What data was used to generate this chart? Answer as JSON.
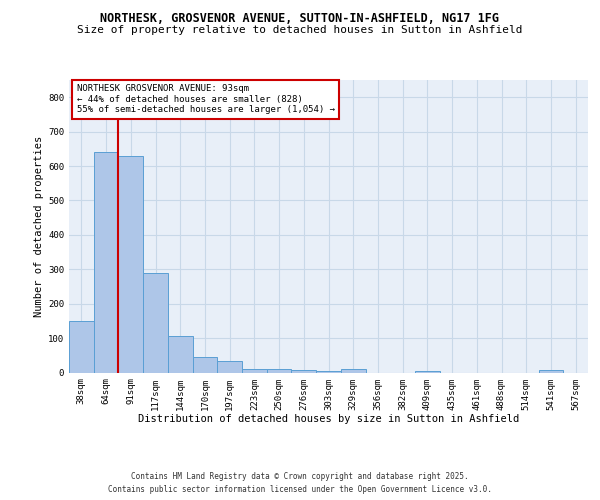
{
  "title1": "NORTHESK, GROSVENOR AVENUE, SUTTON-IN-ASHFIELD, NG17 1FG",
  "title2": "Size of property relative to detached houses in Sutton in Ashfield",
  "xlabel": "Distribution of detached houses by size in Sutton in Ashfield",
  "ylabel": "Number of detached properties",
  "categories": [
    "38sqm",
    "64sqm",
    "91sqm",
    "117sqm",
    "144sqm",
    "170sqm",
    "197sqm",
    "223sqm",
    "250sqm",
    "276sqm",
    "303sqm",
    "329sqm",
    "356sqm",
    "382sqm",
    "409sqm",
    "435sqm",
    "461sqm",
    "488sqm",
    "514sqm",
    "541sqm",
    "567sqm"
  ],
  "values": [
    150,
    640,
    630,
    290,
    105,
    45,
    32,
    10,
    10,
    7,
    5,
    10,
    0,
    0,
    5,
    0,
    0,
    0,
    0,
    7,
    0
  ],
  "bar_color": "#aec6e8",
  "bar_edge_color": "#5a9fd4",
  "grid_color": "#c8d8e8",
  "background_color": "#e8eff8",
  "property_line_color": "#cc0000",
  "property_bin_index": 2,
  "annotation_title": "NORTHESK GROSVENOR AVENUE: 93sqm",
  "annotation_line2": "← 44% of detached houses are smaller (828)",
  "annotation_line3": "55% of semi-detached houses are larger (1,054) →",
  "annotation_box_color": "#cc0000",
  "annotation_bg": "#ffffff",
  "ylim": [
    0,
    850
  ],
  "yticks": [
    0,
    100,
    200,
    300,
    400,
    500,
    600,
    700,
    800
  ],
  "footer1": "Contains HM Land Registry data © Crown copyright and database right 2025.",
  "footer2": "Contains public sector information licensed under the Open Government Licence v3.0.",
  "title1_fontsize": 8.5,
  "title2_fontsize": 8.0,
  "axis_label_fontsize": 7.5,
  "tick_fontsize": 6.5,
  "annotation_fontsize": 6.5,
  "footer_fontsize": 5.5
}
